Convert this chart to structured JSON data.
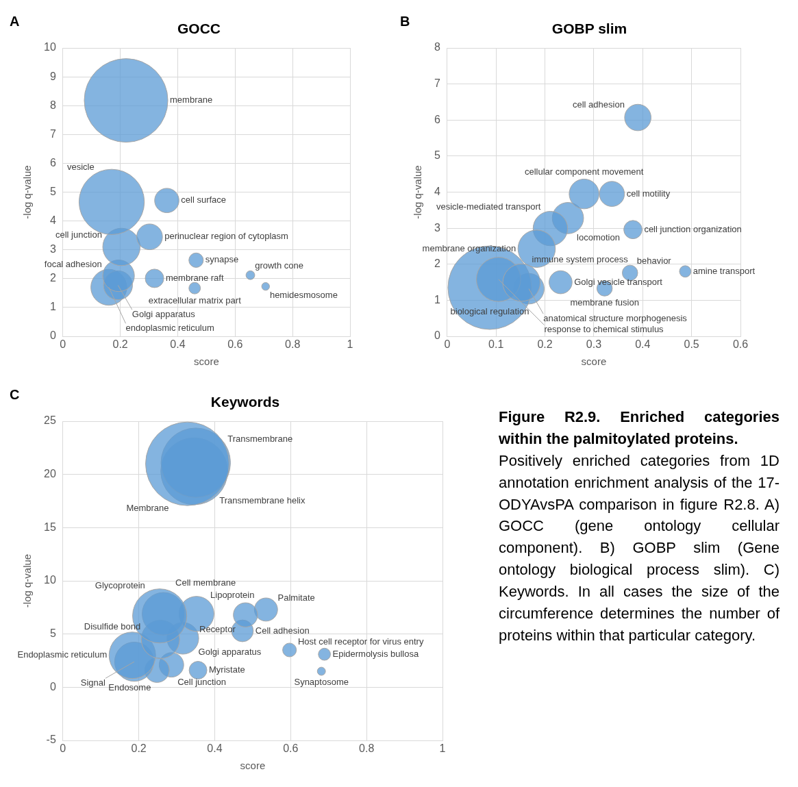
{
  "chart_data": [
    {
      "type": "bubble",
      "title": "GOCC",
      "xlabel": "score",
      "ylabel": "-log q-value",
      "annotations": [
        "A"
      ],
      "xlim": [
        0,
        1
      ],
      "xticks": [
        0,
        0.2,
        0.4,
        0.6,
        0.8,
        1
      ],
      "ylim": [
        0,
        10
      ],
      "yticks": [
        0,
        1,
        2,
        3,
        4,
        5,
        6,
        7,
        8,
        9,
        10
      ],
      "grid": true,
      "series": [
        {
          "name": "membrane",
          "color": "#5b9bd5",
          "x": [
            0.22
          ],
          "values": [
            8.18
          ],
          "sizes": [
            1
          ]
        },
        {
          "name": "vesicle",
          "color": "#5b9bd5",
          "x": [
            0.17
          ],
          "values": [
            4.66
          ],
          "sizes": [
            0.61
          ]
        },
        {
          "name": "cell surface",
          "color": "#5b9bd5",
          "x": [
            0.362
          ],
          "values": [
            4.71
          ],
          "sizes": [
            0.085
          ]
        },
        {
          "name": "perinuclear region of cytoplasm",
          "color": "#5b9bd5",
          "x": [
            0.302
          ],
          "values": [
            3.45
          ],
          "sizes": [
            0.095
          ]
        },
        {
          "name": "cell junction",
          "color": "#5b9bd5",
          "x": [
            0.204
          ],
          "values": [
            3.1
          ],
          "sizes": [
            0.2
          ]
        },
        {
          "name": "focal adhesion",
          "color": "#5b9bd5",
          "x": [
            0.194
          ],
          "values": [
            2.1
          ],
          "sizes": [
            0.143
          ]
        },
        {
          "name": "Golgi apparatus",
          "color": "#5b9bd5",
          "x": [
            0.192
          ],
          "values": [
            1.77
          ],
          "sizes": [
            0.12
          ]
        },
        {
          "name": "endoplasmic reticulum",
          "color": "#5b9bd5",
          "x": [
            0.16
          ],
          "values": [
            1.7
          ],
          "sizes": [
            0.185
          ]
        },
        {
          "name": "synapse",
          "color": "#5b9bd5",
          "x": [
            0.464
          ],
          "values": [
            2.64
          ],
          "sizes": [
            0.03
          ]
        },
        {
          "name": "membrane raft",
          "color": "#5b9bd5",
          "x": [
            0.319
          ],
          "values": [
            2.01
          ],
          "sizes": [
            0.049
          ]
        },
        {
          "name": "growth cone",
          "color": "#5b9bd5",
          "x": [
            0.653
          ],
          "values": [
            2.12
          ],
          "sizes": [
            0.011
          ]
        },
        {
          "name": "hemidesmosome",
          "color": "#5b9bd5",
          "x": [
            0.706
          ],
          "values": [
            1.73
          ],
          "sizes": [
            0.0087
          ]
        },
        {
          "name": "extracellular matrix part",
          "color": "#5b9bd5",
          "x": [
            0.459
          ],
          "values": [
            1.67
          ],
          "sizes": [
            0.019
          ]
        }
      ]
    },
    {
      "type": "bubble",
      "title": "GOBP slim",
      "xlabel": "score",
      "ylabel": "-log q-value",
      "annotations": [
        "B"
      ],
      "xlim": [
        0,
        0.6
      ],
      "xticks": [
        0,
        0.1,
        0.2,
        0.3,
        0.4,
        0.5,
        0.6
      ],
      "ylim": [
        0,
        8
      ],
      "yticks": [
        0,
        1,
        2,
        3,
        4,
        5,
        6,
        7,
        8
      ],
      "grid": true,
      "series": [
        {
          "name": "cell adhesion",
          "color": "#5b9bd5",
          "x": [
            0.39
          ],
          "values": [
            6.07
          ],
          "sizes": [
            0.1
          ]
        },
        {
          "name": "membrane organization",
          "color": "#5b9bd5",
          "x": [
            0.183
          ],
          "values": [
            2.43
          ],
          "sizes": [
            0.2
          ]
        },
        {
          "name": "vesicle-mediated transport",
          "color": "#5b9bd5",
          "x": [
            0.211
          ],
          "values": [
            2.99
          ],
          "sizes": [
            0.17
          ]
        },
        {
          "name": "cellular component movement",
          "color": "#5b9bd5",
          "x": [
            0.28
          ],
          "values": [
            3.95
          ],
          "sizes": [
            0.127
          ]
        },
        {
          "name": "cell motility",
          "color": "#5b9bd5",
          "x": [
            0.337
          ],
          "values": [
            3.95
          ],
          "sizes": [
            0.09
          ]
        },
        {
          "name": "immune system process",
          "color": "#5b9bd5",
          "x": [
            0.152
          ],
          "values": [
            1.49
          ],
          "sizes": [
            0.2
          ]
        },
        {
          "name": "locomotion",
          "color": "#5b9bd5",
          "x": [
            0.247
          ],
          "values": [
            3.28
          ],
          "sizes": [
            0.14
          ]
        },
        {
          "name": "cell junction organization",
          "color": "#5b9bd5",
          "x": [
            0.38
          ],
          "values": [
            2.96
          ],
          "sizes": [
            0.048
          ]
        },
        {
          "name": "response to chemical stimulus",
          "color": "#5b9bd5",
          "x": [
            0.105
          ],
          "values": [
            1.58
          ],
          "sizes": [
            0.28
          ]
        },
        {
          "name": "Golgi vesicle transport",
          "color": "#5b9bd5",
          "x": [
            0.232
          ],
          "values": [
            1.5
          ],
          "sizes": [
            0.076
          ]
        },
        {
          "name": "behavior",
          "color": "#5b9bd5",
          "x": [
            0.374
          ],
          "values": [
            1.76
          ],
          "sizes": [
            0.034
          ]
        },
        {
          "name": "amine transport",
          "color": "#5b9bd5",
          "x": [
            0.487
          ],
          "values": [
            1.8
          ],
          "sizes": [
            0.019
          ]
        },
        {
          "name": "membrane fusion",
          "color": "#5b9bd5",
          "x": [
            0.322
          ],
          "values": [
            1.33
          ],
          "sizes": [
            0.034
          ]
        },
        {
          "name": "biological regulation",
          "color": "#5b9bd5",
          "x": [
            0.087
          ],
          "values": [
            1.35
          ],
          "sizes": [
            1
          ]
        },
        {
          "name": "anatomical structure morphogenesis",
          "color": "#5b9bd5",
          "x": [
            0.167
          ],
          "values": [
            1.32
          ],
          "sizes": [
            0.134
          ]
        }
      ]
    },
    {
      "type": "bubble",
      "title": "Keywords",
      "xlabel": "score",
      "ylabel": "-log q-value",
      "annotations": [
        "C"
      ],
      "xlim": [
        0,
        1
      ],
      "xticks": [
        0,
        0.2,
        0.4,
        0.6,
        0.8,
        1
      ],
      "ylim": [
        -5,
        25
      ],
      "yticks": [
        -5,
        0,
        5,
        10,
        15,
        20,
        25
      ],
      "grid": true,
      "series": [
        {
          "name": "Membrane",
          "color": "#5b9bd5",
          "x": [
            0.328
          ],
          "values": [
            21.0
          ],
          "sizes": [
            1
          ]
        },
        {
          "name": "Transmembrane",
          "color": "#5b9bd5",
          "x": [
            0.35
          ],
          "values": [
            21.1
          ],
          "sizes": [
            0.69
          ]
        },
        {
          "name": "Transmembrane helix",
          "color": "#5b9bd5",
          "x": [
            0.346
          ],
          "values": [
            20.3
          ],
          "sizes": [
            0.64
          ]
        },
        {
          "name": "Glycoprotein",
          "color": "#5b9bd5",
          "x": [
            0.255
          ],
          "values": [
            6.7
          ],
          "sizes": [
            0.42
          ]
        },
        {
          "name": "Cell membrane",
          "color": "#5b9bd5",
          "x": [
            0.265
          ],
          "values": [
            6.9
          ],
          "sizes": [
            0.26
          ]
        },
        {
          "name": "Lipoprotein",
          "color": "#5b9bd5",
          "x": [
            0.352
          ],
          "values": [
            6.9
          ],
          "sizes": [
            0.175
          ]
        },
        {
          "name": "Disulfide bond",
          "color": "#5b9bd5",
          "x": [
            0.257
          ],
          "values": [
            4.5
          ],
          "sizes": [
            0.21
          ]
        },
        {
          "name": "Endoplasmic reticulum",
          "color": "#5b9bd5",
          "x": [
            0.183
          ],
          "values": [
            3.0
          ],
          "sizes": [
            0.31
          ]
        },
        {
          "name": "Receptor",
          "color": "#5b9bd5",
          "x": [
            0.481
          ],
          "values": [
            6.8
          ],
          "sizes": [
            0.084
          ]
        },
        {
          "name": "Palmitate",
          "color": "#5b9bd5",
          "x": [
            0.535
          ],
          "values": [
            7.3
          ],
          "sizes": [
            0.077
          ]
        },
        {
          "name": "Host cell receptor for virus entry",
          "color": "#5b9bd5",
          "x": [
            0.597
          ],
          "values": [
            3.5
          ],
          "sizes": [
            0.027
          ]
        },
        {
          "name": "Golgi apparatus",
          "color": "#5b9bd5",
          "x": [
            0.316
          ],
          "values": [
            4.6
          ],
          "sizes": [
            0.144
          ]
        },
        {
          "name": "Cell adhesion",
          "color": "#5b9bd5",
          "x": [
            0.473
          ],
          "values": [
            5.3
          ],
          "sizes": [
            0.068
          ]
        },
        {
          "name": "Epidermolysis bullosa",
          "color": "#5b9bd5",
          "x": [
            0.689
          ],
          "values": [
            3.1
          ],
          "sizes": [
            0.021
          ]
        },
        {
          "name": "Signal",
          "color": "#5b9bd5",
          "x": [
            0.188
          ],
          "values": [
            2.4
          ],
          "sizes": [
            0.22
          ]
        },
        {
          "name": "Myristate",
          "color": "#5b9bd5",
          "x": [
            0.356
          ],
          "values": [
            1.6
          ],
          "sizes": [
            0.045
          ]
        },
        {
          "name": "Synaptosome",
          "color": "#5b9bd5",
          "x": [
            0.681
          ],
          "values": [
            1.5
          ],
          "sizes": [
            0.0095
          ]
        },
        {
          "name": "Endosome",
          "color": "#5b9bd5",
          "x": [
            0.248
          ],
          "values": [
            1.6
          ],
          "sizes": [
            0.086
          ]
        },
        {
          "name": "Cell junction",
          "color": "#5b9bd5",
          "x": [
            0.286
          ],
          "values": [
            2.1
          ],
          "sizes": [
            0.086
          ]
        }
      ]
    },
    {
      "type": "other",
      "title": "Figure R2.9. Enriched categories within the palmitoylated proteins.",
      "annotations": [
        "Positively enriched categories from 1D annotation enrichment analysis of the 17-ODYAvsPA comparison in figure R2.8. A) GOCC (gene ontology cellular component). B) GOBP slim (Gene ontology biological process slim). C) Keywords. In all cases the size of the circumference determines the number of proteins within that particular category."
      ]
    }
  ]
}
